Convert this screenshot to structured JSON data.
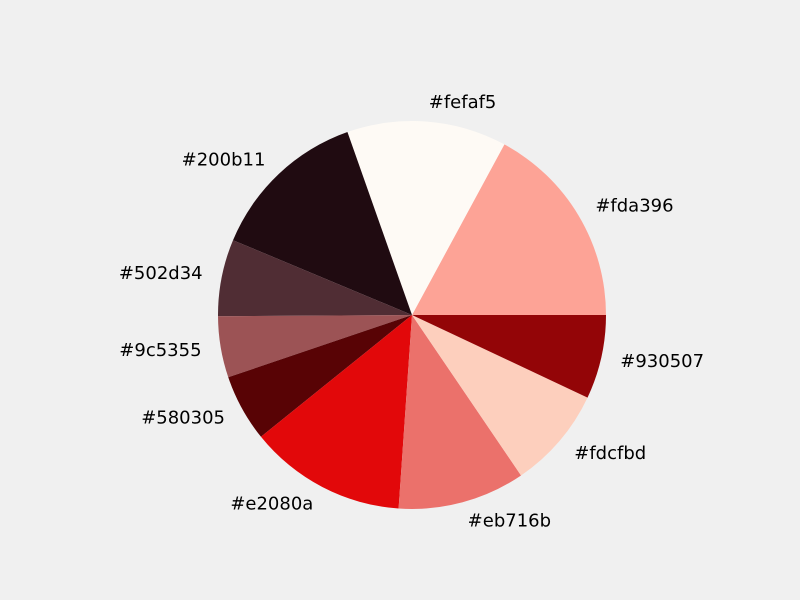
{
  "chart_data": {
    "type": "pie",
    "start_angle_deg": 0,
    "direction": "counterclockwise",
    "slices": [
      {
        "label": "#fda396",
        "value": 17.1,
        "color": "#fda396"
      },
      {
        "label": "#fefaf5",
        "value": 13.3,
        "color": "#fefaf5"
      },
      {
        "label": "#200b11",
        "value": 13.3,
        "color": "#200b11"
      },
      {
        "label": "#502d34",
        "value": 6.4,
        "color": "#502d34"
      },
      {
        "label": "#9c5355",
        "value": 5.1,
        "color": "#9c5355"
      },
      {
        "label": "#580305",
        "value": 5.6,
        "color": "#580305"
      },
      {
        "label": "#e2080a",
        "value": 13.1,
        "color": "#e2080a"
      },
      {
        "label": "#eb716b",
        "value": 10.6,
        "color": "#eb716b"
      },
      {
        "label": "#fdcfbd",
        "value": 8.5,
        "color": "#fdcfbd"
      },
      {
        "label": "#930507",
        "value": 7.0,
        "color": "#930507"
      }
    ]
  }
}
